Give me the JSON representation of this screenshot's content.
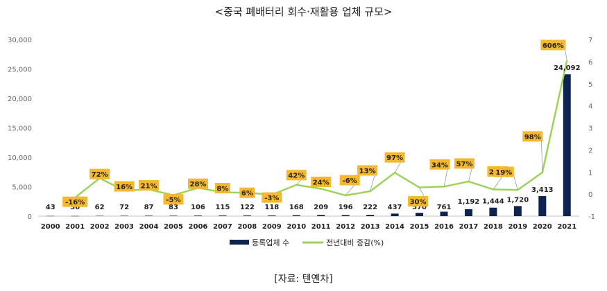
{
  "chart_data": {
    "type": "bar",
    "title": "<중국 폐배터리 회수·재활용 업체 규모>",
    "source": "[자료: 텐옌차]",
    "categories": [
      "2000",
      "2001",
      "2002",
      "2003",
      "2004",
      "2005",
      "2006",
      "2007",
      "2008",
      "2009",
      "2010",
      "2011",
      "2012",
      "2013",
      "2014",
      "2015",
      "2016",
      "2017",
      "2018",
      "2019",
      "2020",
      "2021"
    ],
    "series": [
      {
        "name": "등록업체 수",
        "type": "bar",
        "axis": "left",
        "color": "#0f2350",
        "values": [
          43,
          36,
          62,
          72,
          87,
          83,
          106,
          115,
          122,
          118,
          168,
          209,
          196,
          222,
          437,
          570,
          761,
          1192,
          1444,
          1720,
          3413,
          24092
        ],
        "labels": [
          "43",
          "36",
          "62",
          "72",
          "87",
          "83",
          "106",
          "115",
          "122",
          "118",
          "168",
          "209",
          "196",
          "222",
          "437",
          "570",
          "761",
          "1,192",
          "1,444",
          "1,720",
          "3,413",
          "24,092"
        ]
      },
      {
        "name": "전년대비 증감(%)",
        "type": "line",
        "axis": "right",
        "color": "#9dd35a",
        "values": [
          null,
          -0.16,
          0.72,
          0.16,
          0.21,
          -0.05,
          0.28,
          0.08,
          0.06,
          -0.03,
          0.42,
          0.24,
          -0.06,
          0.13,
          0.97,
          0.3,
          0.34,
          0.57,
          0.21,
          0.19,
          0.98,
          6.06
        ],
        "labels": [
          null,
          "-16%",
          "72%",
          "16%",
          "21%",
          "-5%",
          "28%",
          "8%",
          "6%",
          "-3%",
          "42%",
          "24%",
          "-6%",
          "13%",
          "97%",
          "30%",
          "34%",
          "57%",
          "21%",
          "19%",
          "98%",
          "606%"
        ]
      }
    ],
    "y_left": {
      "min": 0,
      "max": 30000,
      "ticks": [
        0,
        5000,
        10000,
        15000,
        20000,
        25000,
        30000
      ],
      "tick_labels": [
        "0",
        "5,000",
        "10,000",
        "15,000",
        "20,000",
        "25,000",
        "30,000"
      ]
    },
    "y_right": {
      "min": -1,
      "max": 7,
      "ticks": [
        -1,
        0,
        1,
        2,
        3,
        4,
        5,
        6,
        7
      ],
      "tick_labels": [
        "-1",
        "0",
        "1",
        "2",
        "3",
        "4",
        "5",
        "6",
        "7"
      ]
    },
    "legend_position": "bottom",
    "grid": false,
    "label_box_color": "#f5b82e"
  }
}
